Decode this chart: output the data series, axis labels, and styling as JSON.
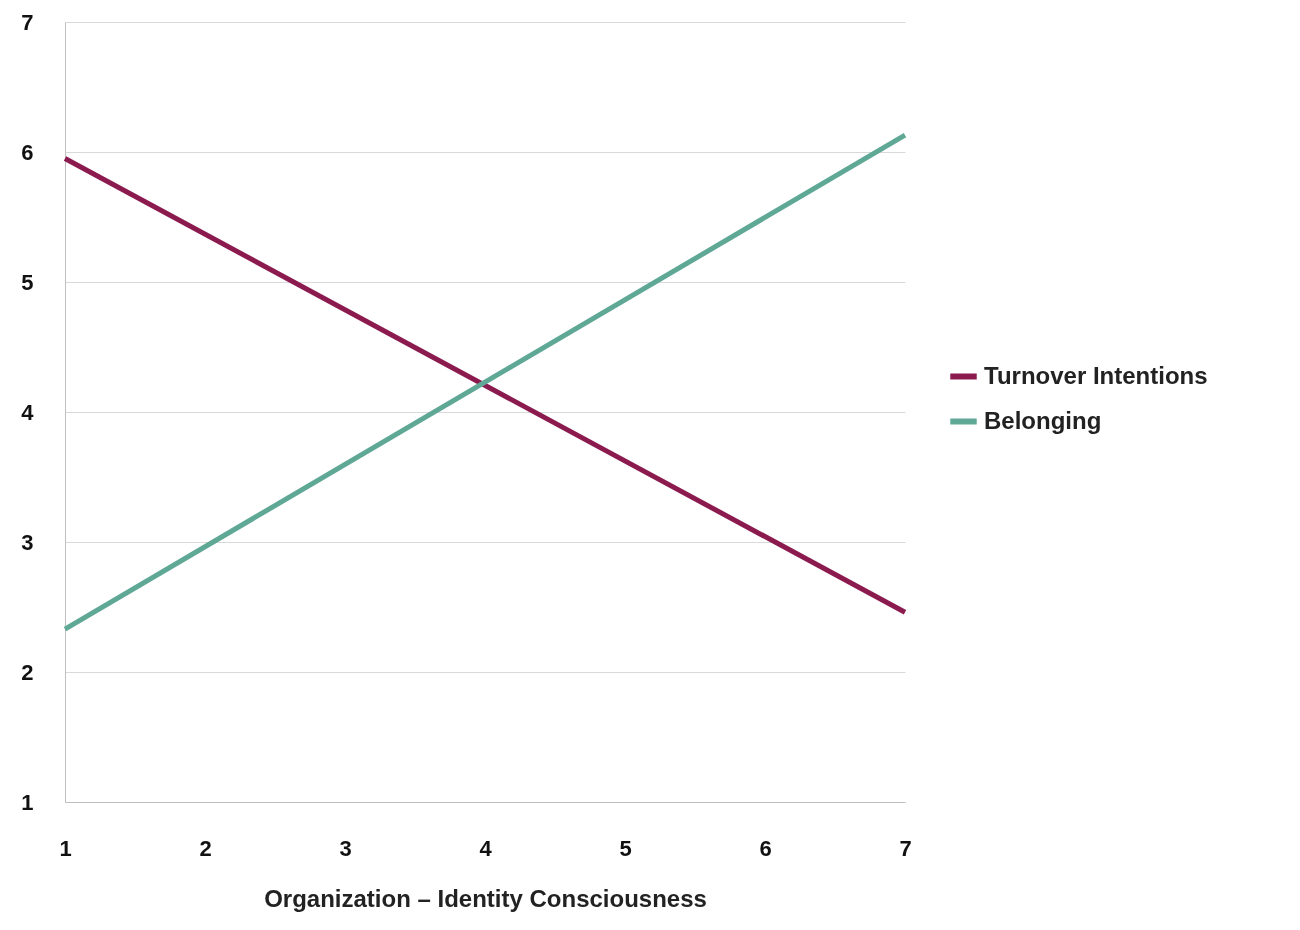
{
  "chart_data": {
    "type": "line",
    "xlabel": "Organization – Identity Consciousness",
    "x": [
      1,
      7
    ],
    "series": [
      {
        "name": "Turnover Intentions",
        "color": "#8b1a4f",
        "values": [
          5.95,
          2.46
        ]
      },
      {
        "name": "Belonging",
        "color": "#5fa896",
        "values": [
          2.33,
          6.13
        ]
      }
    ],
    "xlim": [
      1,
      7
    ],
    "ylim": [
      1,
      7
    ],
    "xticks": [
      1,
      2,
      3,
      4,
      5,
      6,
      7
    ],
    "yticks": [
      1,
      2,
      3,
      4,
      5,
      6,
      7
    ],
    "grid": "y",
    "legend": "right"
  }
}
